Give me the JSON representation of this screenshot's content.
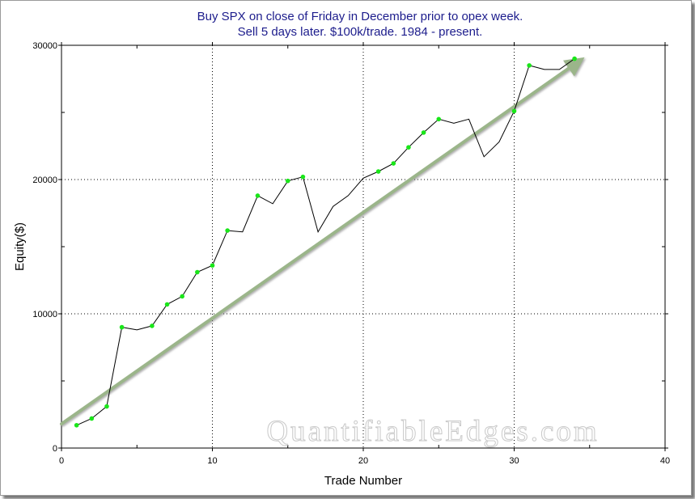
{
  "chart_data": {
    "type": "line",
    "title": "Buy SPX on close of Friday in December prior to opex week.",
    "subtitle": "Sell 5 days later. $100k/trade. 1984 - present.",
    "xlabel": "Trade Number",
    "ylabel": "Equity($)",
    "xlim": [
      0,
      40
    ],
    "ylim": [
      0,
      30000
    ],
    "x_ticks": [
      "0",
      "10",
      "20",
      "30",
      "40"
    ],
    "y_ticks": [
      "0",
      "10000",
      "20000",
      "30000"
    ],
    "grid": true,
    "watermark": "QuantifiableEdges.com",
    "line_color": "#000000",
    "marker_color": "#19e619",
    "trend_color": "#9bb58a",
    "series": [
      {
        "x": [
          1,
          2,
          3,
          4,
          5,
          6,
          7,
          8,
          9,
          10,
          11,
          12,
          13,
          14,
          15,
          16,
          17,
          18,
          19,
          20,
          21,
          22,
          23,
          24,
          25,
          26,
          27,
          28,
          29,
          30,
          31,
          32,
          33,
          34
        ],
        "y": [
          1700,
          2200,
          3100,
          9000,
          8800,
          9100,
          10700,
          11300,
          13100,
          13600,
          16200,
          16100,
          18800,
          18200,
          19900,
          20200,
          16100,
          18000,
          18800,
          20100,
          20600,
          21200,
          22400,
          23500,
          24500,
          24200,
          24500,
          21700,
          22800,
          25100,
          28500,
          28200,
          28200,
          29000
        ],
        "markers": [
          true,
          true,
          true,
          true,
          false,
          true,
          true,
          true,
          true,
          true,
          true,
          false,
          true,
          false,
          true,
          true,
          false,
          false,
          false,
          false,
          true,
          true,
          true,
          true,
          true,
          false,
          false,
          false,
          false,
          true,
          true,
          false,
          false,
          true
        ]
      }
    ],
    "trend_arrow": {
      "from": [
        0,
        1800
      ],
      "to": [
        34.4,
        28900
      ]
    }
  }
}
